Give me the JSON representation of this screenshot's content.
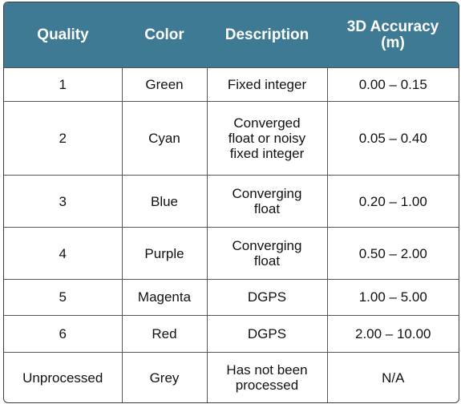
{
  "header": {
    "quality": "Quality",
    "color": "Color",
    "description": "Description",
    "accuracy_line1": "3D Accuracy",
    "accuracy_line2": "(m)"
  },
  "colors": {
    "header_bg": "#3f7a94",
    "header_text": "#ffffff",
    "border": "#555555"
  },
  "rows": [
    {
      "quality": "1",
      "color": "Green",
      "description": [
        "Fixed integer"
      ],
      "accuracy": "0.00 – 0.15"
    },
    {
      "quality": "2",
      "color": "Cyan",
      "description": [
        "Converged",
        "float or noisy",
        "fixed integer"
      ],
      "accuracy": "0.05 – 0.40"
    },
    {
      "quality": "3",
      "color": "Blue",
      "description": [
        "Converging",
        "float"
      ],
      "accuracy": "0.20 – 1.00"
    },
    {
      "quality": "4",
      "color": "Purple",
      "description": [
        "Converging",
        "float"
      ],
      "accuracy": "0.50 – 2.00"
    },
    {
      "quality": "5",
      "color": "Magenta",
      "description": [
        "DGPS"
      ],
      "accuracy": "1.00 – 5.00"
    },
    {
      "quality": "6",
      "color": "Red",
      "description": [
        "DGPS"
      ],
      "accuracy": "2.00 – 10.00"
    },
    {
      "quality": "Unprocessed",
      "color": "Grey",
      "description": [
        "Has not been",
        "processed"
      ],
      "accuracy": "N/A"
    }
  ]
}
